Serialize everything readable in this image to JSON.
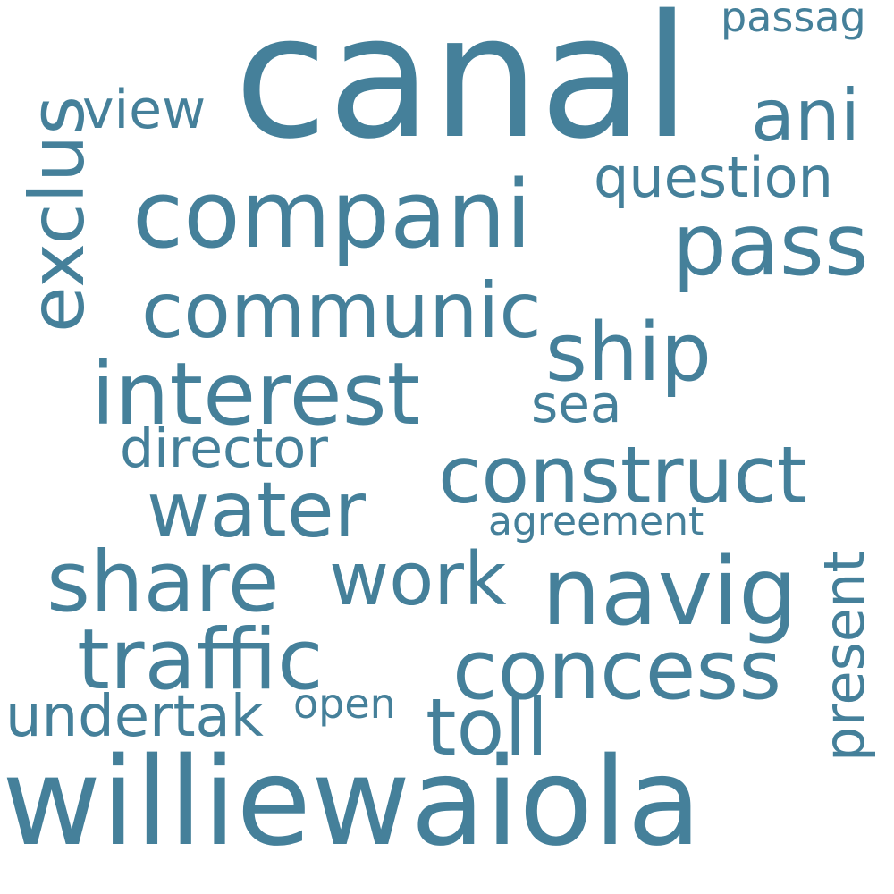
{
  "colors": {
    "background": "#ffffff",
    "word": "#45809a"
  },
  "words": {
    "canal": "canal",
    "williewaiola": "williewaiola",
    "compani": "compani",
    "pass": "pass",
    "communic": "communic",
    "interest": "interest",
    "ship": "ship",
    "construct": "construct",
    "navig": "navig",
    "concess": "concess",
    "traffic": "traffic",
    "share": "share",
    "water": "water",
    "work": "work",
    "toll": "toll",
    "exclus": "exclus",
    "present": "present",
    "ani": "ani",
    "question": "question",
    "view": "view",
    "passag": "passag",
    "director": "director",
    "sea": "sea",
    "agreement": "agreement",
    "undertak": "undertak",
    "open": "open"
  }
}
